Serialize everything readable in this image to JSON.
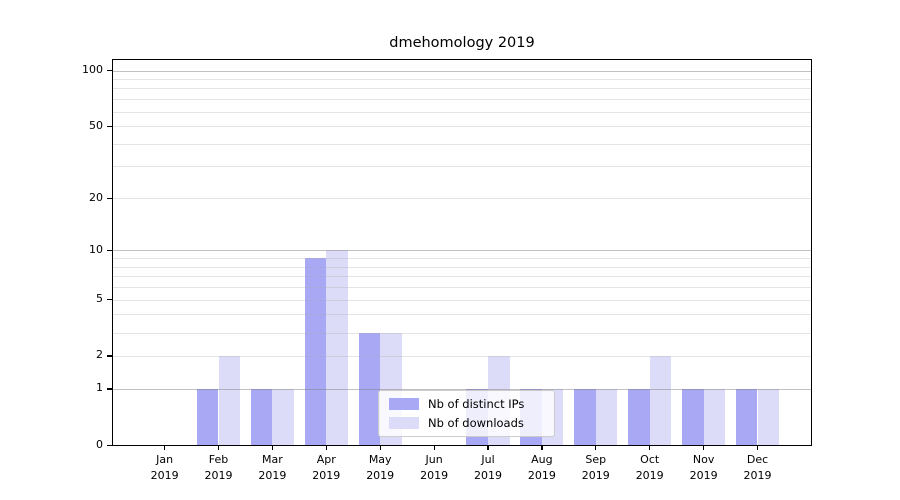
{
  "chart_data": {
    "type": "bar",
    "title": "dmehomology 2019",
    "scale": "log1p",
    "categories": [
      "Jan",
      "Feb",
      "Mar",
      "Apr",
      "May",
      "Jun",
      "Jul",
      "Aug",
      "Sep",
      "Oct",
      "Nov",
      "Dec"
    ],
    "category_sublabel": "2019",
    "series": [
      {
        "name": "Nb of distinct IPs",
        "color": "#a8a8f5",
        "values": [
          0,
          1,
          1,
          9,
          3,
          0,
          1,
          1,
          1,
          1,
          1,
          1
        ]
      },
      {
        "name": "Nb of downloads",
        "color": "#dcdcf8",
        "values": [
          0,
          2,
          1,
          10,
          3,
          0,
          2,
          1,
          1,
          2,
          1,
          1
        ]
      }
    ],
    "y_ticks": [
      0,
      1,
      2,
      5,
      10,
      20,
      50,
      100
    ],
    "y_major_gridlines": [
      1,
      10,
      100
    ],
    "y_minor_gridlines": [
      3,
      4,
      6,
      7,
      8,
      9,
      30,
      40,
      60,
      70,
      80,
      90
    ],
    "ylim": [
      0,
      114
    ],
    "grid": true,
    "legend_position": "lower center",
    "colors": {
      "axis": "#000000",
      "grid_minor": "#e3e3e3",
      "grid_major": "#c6c6c6",
      "background": "#ffffff"
    }
  }
}
